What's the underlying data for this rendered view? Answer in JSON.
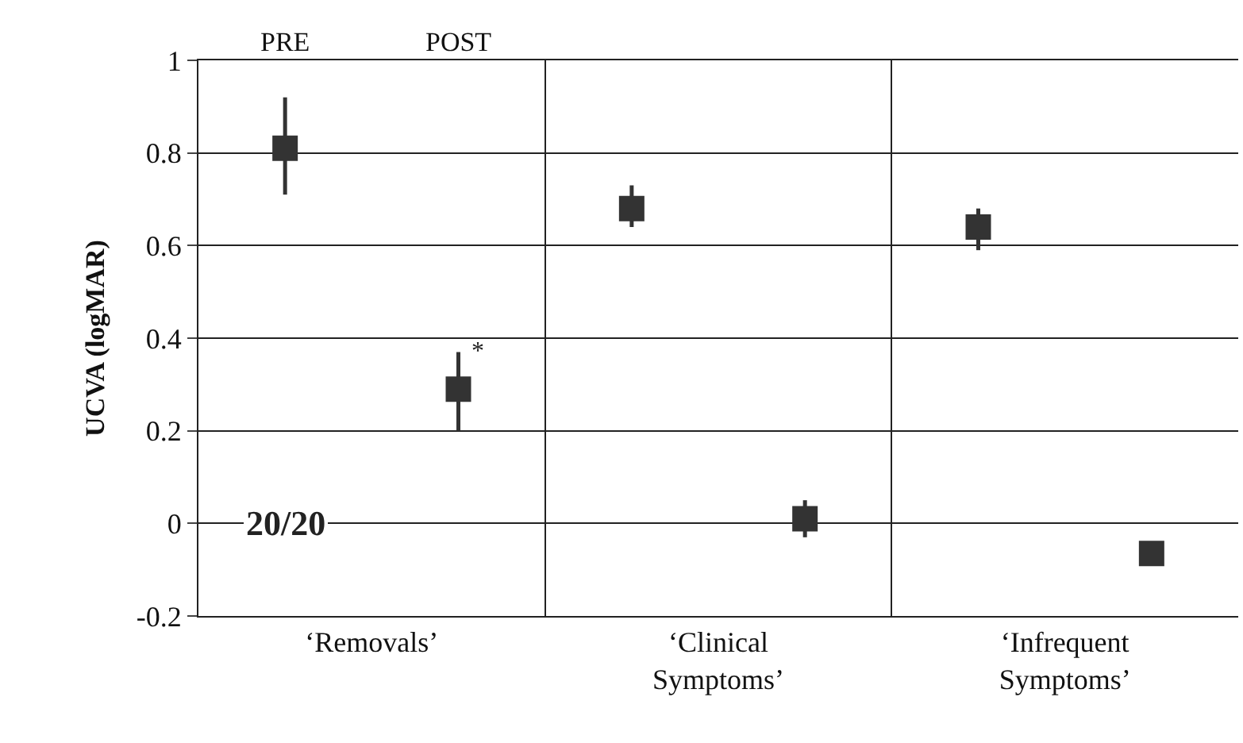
{
  "chart_data": {
    "type": "scatter",
    "ylabel": "UCVA (logMAR)",
    "categories": [
      "‘Removals’",
      "‘Clinical Symptoms’",
      "‘Infrequent Symptoms’"
    ],
    "series": [
      {
        "color": "#333333",
        "values": [
          0.81,
          0.68,
          0.64
        ],
        "errors": [
          [
            0.71,
            0.92
          ],
          [
            0.64,
            0.73
          ],
          [
            0.59,
            0.68
          ]
        ]
      },
      {
        "color": "#333333",
        "values": [
          0.29,
          0.01,
          -0.065
        ],
        "errors": [
          [
            0.2,
            0.37
          ],
          [
            -0.03,
            0.05
          ],
          null
        ]
      }
    ],
    "annotations": [
      "PRE",
      "POST",
      "20/20",
      "*"
    ],
    "ylim": [
      -0.2,
      1
    ],
    "yticks": [
      -0.2,
      0,
      0.2,
      0.4,
      0.6,
      0.8,
      1
    ],
    "grid": true,
    "marker": "square",
    "legend": false
  }
}
